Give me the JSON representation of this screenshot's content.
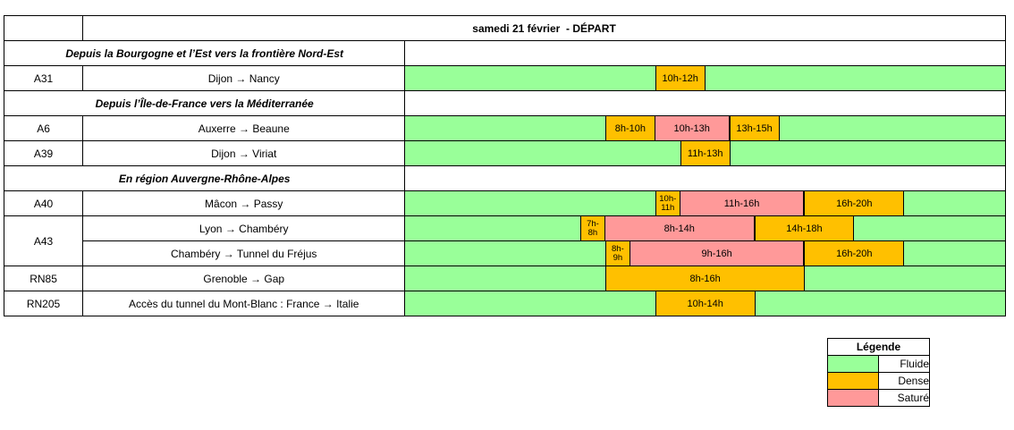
{
  "title": "samedi 21 février  - DÉPART",
  "colors": {
    "fluide": "#99FF99",
    "dense": "#FFC000",
    "sature": "#FF9999",
    "section": "#DCDCDC",
    "border": "#000000"
  },
  "legend": {
    "title": "Légende",
    "items": [
      {
        "label": "Fluide",
        "status": "fluide"
      },
      {
        "label": "Dense",
        "status": "dense"
      },
      {
        "label": "Saturé",
        "status": "sature"
      }
    ]
  },
  "chart_data": {
    "type": "table",
    "title": "samedi 21 février  - DÉPART",
    "timeline": {
      "unit": "hour",
      "min": 0,
      "max": 24,
      "ticks_shown": false,
      "default_status": "fluide"
    },
    "sections": [
      {
        "label": "Depuis la Bourgogne et l’Est vers la frontière Nord-Est",
        "rows": [
          {
            "road": "A31",
            "route": "Dijon → Nancy",
            "segments": [
              {
                "from": 10,
                "to": 12,
                "status": "dense",
                "label": "10h-12h"
              }
            ]
          }
        ]
      },
      {
        "label": "Depuis l’Île-de-France vers la Méditerranée",
        "rows": [
          {
            "road": "A6",
            "route": "Auxerre → Beaune",
            "segments": [
              {
                "from": 8,
                "to": 10,
                "status": "dense",
                "label": "8h-10h"
              },
              {
                "from": 10,
                "to": 13,
                "status": "sature",
                "label": "10h-13h"
              },
              {
                "from": 13,
                "to": 15,
                "status": "dense",
                "label": "13h-15h"
              }
            ]
          },
          {
            "road": "A39",
            "route": "Dijon → Viriat",
            "segments": [
              {
                "from": 11,
                "to": 13,
                "status": "dense",
                "label": "11h-13h"
              }
            ]
          }
        ]
      },
      {
        "label": "En région Auvergne-Rhône-Alpes",
        "rows": [
          {
            "road": "A40",
            "route": "Mâcon → Passy",
            "segments": [
              {
                "from": 10,
                "to": 11,
                "status": "dense",
                "label": "10h-11h",
                "small": true
              },
              {
                "from": 11,
                "to": 16,
                "status": "sature",
                "label": "11h-16h"
              },
              {
                "from": 16,
                "to": 20,
                "status": "dense",
                "label": "16h-20h"
              }
            ]
          },
          {
            "road": "A43",
            "road_rowspan": 2,
            "route": "Lyon → Chambéry",
            "segments": [
              {
                "from": 7,
                "to": 8,
                "status": "dense",
                "label": "7h-8h",
                "small": true
              },
              {
                "from": 8,
                "to": 14,
                "status": "sature",
                "label": "8h-14h"
              },
              {
                "from": 14,
                "to": 18,
                "status": "dense",
                "label": "14h-18h"
              }
            ]
          },
          {
            "road": null,
            "route": "Chambéry → Tunnel du Fréjus",
            "segments": [
              {
                "from": 8,
                "to": 9,
                "status": "dense",
                "label": "8h-9h",
                "small": true
              },
              {
                "from": 9,
                "to": 16,
                "status": "sature",
                "label": "9h-16h"
              },
              {
                "from": 16,
                "to": 20,
                "status": "dense",
                "label": "16h-20h"
              }
            ]
          },
          {
            "road": "RN85",
            "route": "Grenoble → Gap",
            "segments": [
              {
                "from": 8,
                "to": 16,
                "status": "dense",
                "label": "8h-16h"
              }
            ]
          },
          {
            "road": "RN205",
            "route": "Accès du tunnel du Mont-Blanc : France → Italie",
            "segments": [
              {
                "from": 10,
                "to": 14,
                "status": "dense",
                "label": "10h-14h"
              }
            ]
          }
        ]
      }
    ]
  }
}
